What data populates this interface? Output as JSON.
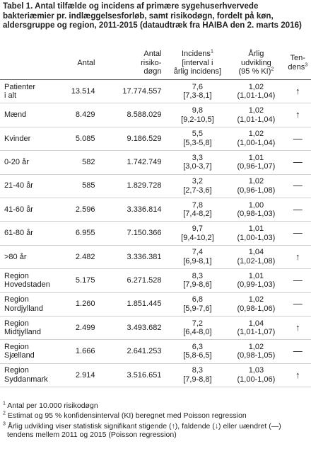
{
  "title": "Tabel 1. Antal tilfælde og incidens af primære sygehuserhvervede bakteriæmier pr. indlæggelsesforløb, samt risikodøgn, fordelt på køn, aldersgruppe og region, 2011-2015 (dataudtræk fra HAIBA den 2. marts 2016)",
  "headers": {
    "antal": "Antal",
    "risiko_l1": "Antal",
    "risiko_l2": "risiko-",
    "risiko_l3": "døgn",
    "incidens_l1": "Incidens",
    "incidens_sup": "1",
    "incidens_l2": "[interval i",
    "incidens_l3": "årlig incidens]",
    "udv_l1": "Årlig",
    "udv_l2": "udvikling",
    "udv_l3": "(95 % KI)",
    "udv_sup": "2",
    "tend_l1": "Ten-",
    "tend_l2": "dens",
    "tend_sup": "3"
  },
  "rows": [
    {
      "l1": "Patienter",
      "l2": "i alt",
      "antal": "13.514",
      "risiko": "17.774.557",
      "inc": "7,6",
      "inc_int": "[7,3-8,1]",
      "udv": "1,02",
      "udv_ki": "(1,01-1,04)",
      "trend": "↑"
    },
    {
      "l1": "Mænd",
      "l2": "",
      "antal": "8.429",
      "risiko": "8.588.029",
      "inc": "9,8",
      "inc_int": "[9,2-10,5]",
      "udv": "1,02",
      "udv_ki": "(1,01-1,04)",
      "trend": "↑"
    },
    {
      "l1": "Kvinder",
      "l2": "",
      "antal": "5.085",
      "risiko": "9.186.529",
      "inc": "5,5",
      "inc_int": "[5,3-5,8]",
      "udv": "1,02",
      "udv_ki": "(1,00-1,04)",
      "trend": "—"
    },
    {
      "l1": "0-20 år",
      "l2": "",
      "antal": "582",
      "risiko": "1.742.749",
      "inc": "3,3",
      "inc_int": "[3,0-3,7]",
      "udv": "1,01",
      "udv_ki": "(0,96-1,07)",
      "trend": "—"
    },
    {
      "l1": "21-40 år",
      "l2": "",
      "antal": "585",
      "risiko": "1.829.728",
      "inc": "3,2",
      "inc_int": "[2,7-3,6]",
      "udv": "1,02",
      "udv_ki": "(0,96-1,08)",
      "trend": "—"
    },
    {
      "l1": "41-60 år",
      "l2": "",
      "antal": "2.596",
      "risiko": "3.336.814",
      "inc": "7,8",
      "inc_int": "[7,4-8,2]",
      "udv": "1,00",
      "udv_ki": "(0,98-1,03)",
      "trend": "—"
    },
    {
      "l1": "61-80 år",
      "l2": "",
      "antal": "6.955",
      "risiko": "7.150.366",
      "inc": "9,7",
      "inc_int": "[9,4-10,2]",
      "udv": "1,01",
      "udv_ki": "(1,00-1,03)",
      "trend": "—"
    },
    {
      "l1": ">80 år",
      "l2": "",
      "antal": "2.482",
      "risiko": "3.336.381",
      "inc": "7,4",
      "inc_int": "[6,9-8,1]",
      "udv": "1,04",
      "udv_ki": "(1,02-1,08)",
      "trend": "↑"
    },
    {
      "l1": "Region",
      "l2": "Hovedstaden",
      "antal": "5.175",
      "risiko": "6.271.528",
      "inc": "8,3",
      "inc_int": "[7,9-8,6]",
      "udv": "1,01",
      "udv_ki": "(0,99-1,03)",
      "trend": "—"
    },
    {
      "l1": "Region",
      "l2": "Nordjylland",
      "antal": "1.260",
      "risiko": "1.851.445",
      "inc": "6,8",
      "inc_int": "[5,9-7,6]",
      "udv": "1,02",
      "udv_ki": "(0,98-1,06)",
      "trend": "—"
    },
    {
      "l1": "Region",
      "l2": "Midtjylland",
      "antal": "2.499",
      "risiko": "3.493.682",
      "inc": "7,2",
      "inc_int": "[6,4-8,0]",
      "udv": "1,04",
      "udv_ki": "(1,01-1,07)",
      "trend": "↑"
    },
    {
      "l1": "Region",
      "l2": "Sjælland",
      "antal": "1.666",
      "risiko": "2.641.253",
      "inc": "6,3",
      "inc_int": "[5,8-6,5]",
      "udv": "1,02",
      "udv_ki": "(0,98-1,05)",
      "trend": "—"
    },
    {
      "l1": "Region",
      "l2": "Syddanmark",
      "antal": "2.914",
      "risiko": "3.516.651",
      "inc": "8,3",
      "inc_int": "[7,9-8,8]",
      "udv": "1,03",
      "udv_ki": "(1,00-1,06)",
      "trend": "↑"
    }
  ],
  "notes": [
    {
      "sup": "1",
      "text": " Antal per 10.000 risikodøgn"
    },
    {
      "sup": "2",
      "text": " Estimat og 95 % konfidensinterval (KI) beregnet med Poisson regression"
    },
    {
      "sup": "3",
      "text": " Årlig udvikling viser statistisk signifikant stigende (↑), faldende (↓) eller uændret (—) tendens mellem 2011 og 2015 (Poisson regression)"
    }
  ]
}
